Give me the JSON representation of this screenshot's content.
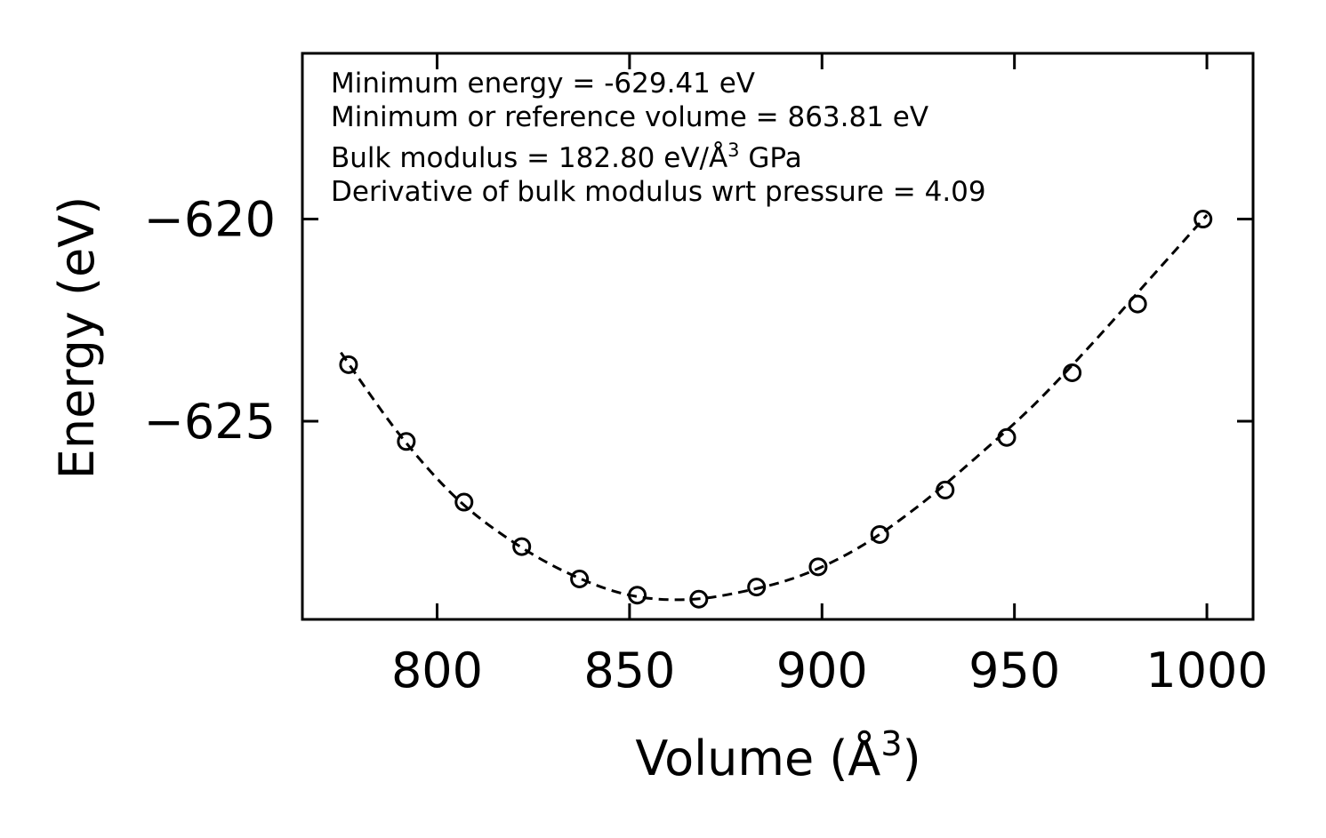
{
  "chart_data": {
    "type": "scatter",
    "title": "",
    "xlabel": "Volume (Å",
    "xlabel_sup": "3",
    "xlabel_end": ")",
    "ylabel": "Energy (eV)",
    "xlim": [
      765,
      1012
    ],
    "ylim": [
      -629.9,
      -615.9
    ],
    "xticks": [
      800,
      850,
      900,
      950,
      1000
    ],
    "xtick_labels": [
      "800",
      "850",
      "900",
      "950",
      "1000"
    ],
    "yticks": [
      -620,
      -625
    ],
    "ytick_labels": [
      "−620",
      "−625"
    ],
    "series": [
      {
        "name": "data",
        "marker": "open-circle",
        "x": [
          777,
          792,
          807,
          822,
          837,
          852,
          868,
          883,
          899,
          915,
          932,
          948,
          965,
          982,
          999
        ],
        "y": [
          -623.6,
          -625.5,
          -627.0,
          -628.1,
          -628.9,
          -629.3,
          -629.4,
          -629.1,
          -628.6,
          -627.8,
          -626.7,
          -625.4,
          -623.8,
          -622.1,
          -620.0
        ]
      },
      {
        "name": "fit",
        "style": "dashed",
        "x": [
          775,
          790,
          805,
          820,
          835,
          850,
          865,
          880,
          895,
          910,
          925,
          940,
          955,
          970,
          985,
          1000
        ],
        "y": [
          -623.3,
          -625.3,
          -626.9,
          -628.0,
          -628.8,
          -629.3,
          -629.41,
          -629.2,
          -628.8,
          -628.1,
          -627.1,
          -625.9,
          -624.6,
          -623.1,
          -621.5,
          -619.9
        ]
      }
    ],
    "annotations": [
      "Minimum energy = -629.41 eV",
      "Minimum or reference volume = 863.81 eV",
      "Derivative of bulk modulus wrt pressure = 4.09"
    ],
    "bulk_label": "Bulk modulus = 182.80 eV/Å",
    "bulk_sup": "3",
    "bulk_end": " GPa",
    "grid": false
  }
}
